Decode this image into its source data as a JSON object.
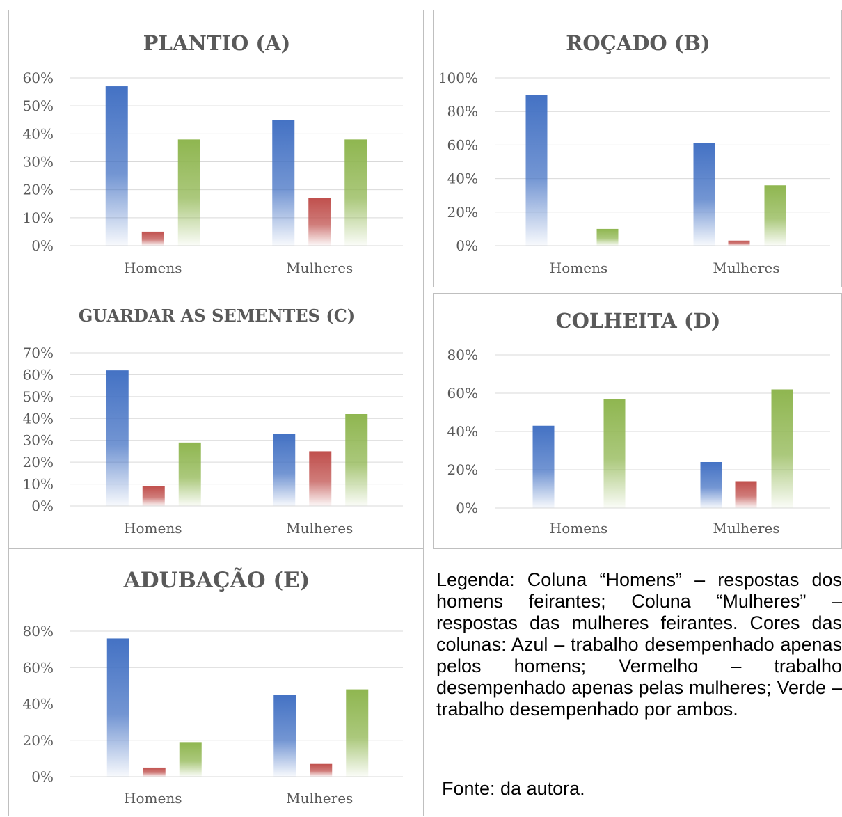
{
  "colors": {
    "blue": "#4472c4",
    "red": "#c0504d",
    "green": "#8fb650",
    "grid": "#d9d9d9",
    "text": "#595959"
  },
  "chart_data": [
    {
      "id": "A",
      "type": "bar",
      "title": "PLANTIO (A)",
      "categories": [
        "Homens",
        "Mulheres"
      ],
      "series": [
        {
          "color_key": "blue",
          "values": [
            57,
            45
          ]
        },
        {
          "color_key": "red",
          "values": [
            5,
            17
          ]
        },
        {
          "color_key": "green",
          "values": [
            38,
            38
          ]
        }
      ],
      "yticks": [
        "0%",
        "10%",
        "20%",
        "30%",
        "40%",
        "50%",
        "60%"
      ],
      "ylim": [
        0,
        60
      ],
      "grid": true
    },
    {
      "id": "B",
      "type": "bar",
      "title": "ROÇADO (B)",
      "categories": [
        "Homens",
        "Mulheres"
      ],
      "series": [
        {
          "color_key": "blue",
          "values": [
            90,
            61
          ]
        },
        {
          "color_key": "red",
          "values": [
            0,
            3
          ]
        },
        {
          "color_key": "green",
          "values": [
            10,
            36
          ]
        }
      ],
      "yticks": [
        "0%",
        "20%",
        "40%",
        "60%",
        "80%",
        "100%"
      ],
      "ylim": [
        0,
        100
      ],
      "grid": true
    },
    {
      "id": "C",
      "type": "bar",
      "title": "GUARDAR AS SEMENTES (C)",
      "categories": [
        "Homens",
        "Mulheres"
      ],
      "series": [
        {
          "color_key": "blue",
          "values": [
            62,
            33
          ]
        },
        {
          "color_key": "red",
          "values": [
            9,
            25
          ]
        },
        {
          "color_key": "green",
          "values": [
            29,
            42
          ]
        }
      ],
      "yticks": [
        "0%",
        "10%",
        "20%",
        "30%",
        "40%",
        "50%",
        "60%",
        "70%"
      ],
      "ylim": [
        0,
        70
      ],
      "grid": true
    },
    {
      "id": "D",
      "type": "bar",
      "title": "COLHEITA (D)",
      "categories": [
        "Homens",
        "Mulheres"
      ],
      "series": [
        {
          "color_key": "blue",
          "values": [
            43,
            24
          ]
        },
        {
          "color_key": "red",
          "values": [
            0,
            14
          ]
        },
        {
          "color_key": "green",
          "values": [
            57,
            62
          ]
        }
      ],
      "yticks": [
        "0%",
        "20%",
        "40%",
        "60%",
        "80%"
      ],
      "ylim": [
        0,
        80
      ],
      "grid": true
    },
    {
      "id": "E",
      "type": "bar",
      "title": "ADUBAÇÃO (E)",
      "categories": [
        "Homens",
        "Mulheres"
      ],
      "series": [
        {
          "color_key": "blue",
          "values": [
            76,
            45
          ]
        },
        {
          "color_key": "red",
          "values": [
            5,
            7
          ]
        },
        {
          "color_key": "green",
          "values": [
            19,
            48
          ]
        }
      ],
      "yticks": [
        "0%",
        "20%",
        "40%",
        "60%",
        "80%"
      ],
      "ylim": [
        0,
        80
      ],
      "grid": true
    }
  ],
  "legend_text": "Legenda: Coluna “Homens” – respostas dos homens feirantes; Coluna “Mulheres” – respostas das mulheres feirantes. Cores das colunas: Azul – trabalho desempenhado apenas pelos homens; Vermelho – trabalho desempenhado apenas pelas mulheres; Verde – trabalho desempenhado por ambos.",
  "source_text": "Fonte: da autora."
}
